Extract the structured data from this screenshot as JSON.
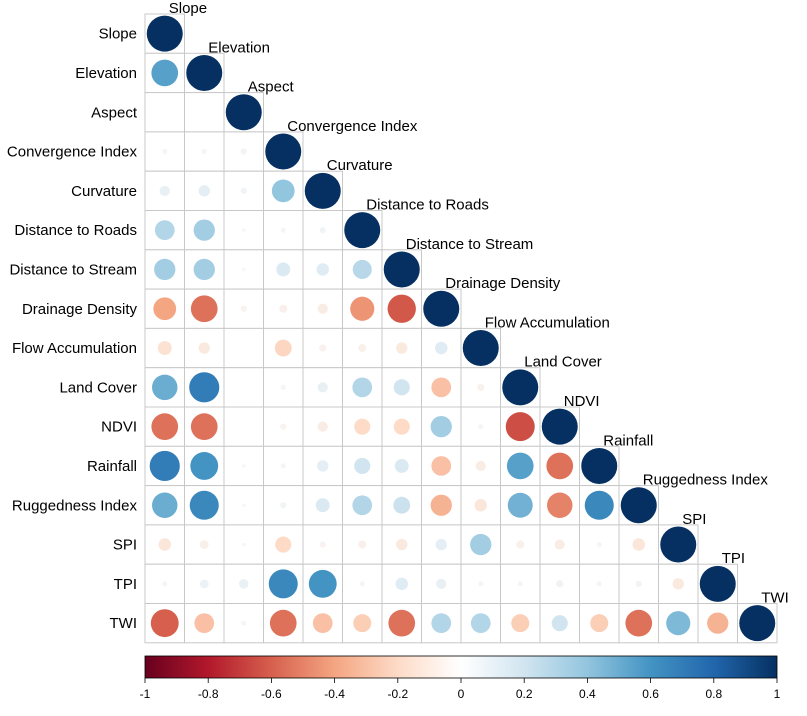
{
  "chart_data": {
    "type": "heatmap",
    "style": "lower-triangular correlation matrix, circles",
    "variables": [
      "Slope",
      "Elevation",
      "Aspect",
      "Convergence Index",
      "Curvature",
      "Distance to Roads",
      "Distance to Stream",
      "Drainage Density",
      "Flow Accumulation",
      "Land Cover",
      "NDVI",
      "Rainfall",
      "Ruggedness Index",
      "SPI",
      "TPI",
      "TWI"
    ],
    "matrix": [
      [
        1
      ],
      [
        0.55,
        1
      ],
      [
        0,
        0,
        1
      ],
      [
        0.02,
        0.02,
        0.03,
        1
      ],
      [
        0.08,
        0.1,
        0.03,
        0.4,
        1
      ],
      [
        0.3,
        0.35,
        0.01,
        0.02,
        0.03,
        1
      ],
      [
        0.35,
        0.35,
        0.01,
        0.15,
        0.12,
        0.28,
        1
      ],
      [
        -0.4,
        -0.55,
        -0.03,
        -0.05,
        -0.08,
        -0.45,
        -0.62,
        1
      ],
      [
        -0.15,
        -0.1,
        0,
        -0.22,
        -0.04,
        -0.05,
        -0.1,
        0.12,
        1
      ],
      [
        0.5,
        0.7,
        0,
        0.02,
        0.08,
        0.3,
        0.2,
        -0.3,
        -0.04,
        1
      ],
      [
        -0.55,
        -0.55,
        0,
        -0.03,
        -0.08,
        -0.2,
        -0.2,
        0.35,
        -0.02,
        -0.65,
        1
      ],
      [
        0.7,
        0.6,
        0.01,
        0.02,
        0.1,
        0.2,
        0.15,
        -0.3,
        -0.08,
        0.55,
        -0.55,
        1
      ],
      [
        0.5,
        0.65,
        0.01,
        0.03,
        0.15,
        0.3,
        0.22,
        -0.35,
        -0.12,
        0.48,
        -0.5,
        0.65,
        1
      ],
      [
        -0.12,
        -0.06,
        0.01,
        -0.2,
        -0.03,
        -0.05,
        -0.1,
        0.1,
        0.35,
        -0.05,
        -0.08,
        -0.02,
        -0.12,
        1
      ],
      [
        0.02,
        0.06,
        0.07,
        0.65,
        0.6,
        0.02,
        0.12,
        0.08,
        0.02,
        0.02,
        0.04,
        0.02,
        0.03,
        -0.1,
        1
      ],
      [
        -0.6,
        -0.3,
        0.02,
        -0.55,
        -0.3,
        -0.25,
        -0.55,
        0.3,
        0.3,
        -0.25,
        0.2,
        -0.25,
        -0.55,
        0.45,
        -0.35,
        1
      ]
    ],
    "colorbar": {
      "range": [
        -1,
        1
      ],
      "ticks": [
        "-1",
        "-0.8",
        "-0.6",
        "-0.4",
        "-0.2",
        "0",
        "0.2",
        "0.4",
        "0.6",
        "0.8",
        "1"
      ]
    },
    "colors": {
      "negative": "#67001F",
      "neutral": "#F7F7F7",
      "positive": "#053061",
      "grid": "#c8c8c8"
    }
  }
}
